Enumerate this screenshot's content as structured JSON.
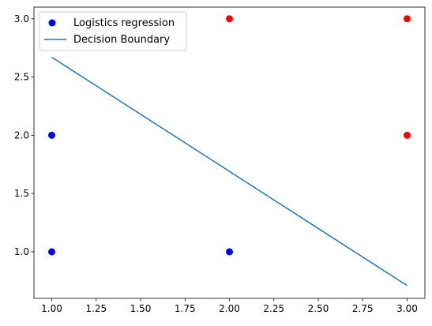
{
  "chart_data": {
    "type": "scatter",
    "title": "",
    "xlabel": "",
    "ylabel": "",
    "xlim": [
      0.9,
      3.1
    ],
    "ylim": [
      0.6,
      3.1
    ],
    "grid": false,
    "legend_position": "top-left",
    "x_ticks": [
      "1.00",
      "1.25",
      "1.50",
      "1.75",
      "2.00",
      "2.25",
      "2.50",
      "2.75",
      "3.00"
    ],
    "y_ticks": [
      "1.0",
      "1.5",
      "2.0",
      "2.5",
      "3.0"
    ],
    "series": [
      {
        "name": "Logistics regression",
        "type": "scatter",
        "color": "#0000ff",
        "points": [
          [
            1.0,
            1.0
          ],
          [
            1.0,
            2.0
          ],
          [
            2.0,
            1.0
          ]
        ]
      },
      {
        "type": "scatter",
        "color": "#ff0000",
        "points": [
          [
            2.0,
            3.0
          ],
          [
            3.0,
            3.0
          ],
          [
            3.0,
            2.0
          ]
        ]
      },
      {
        "name": "Decision Boundary",
        "type": "line",
        "color": "#1f77b4",
        "points": [
          [
            1.0,
            2.67
          ],
          [
            3.0,
            0.71
          ]
        ]
      }
    ]
  }
}
